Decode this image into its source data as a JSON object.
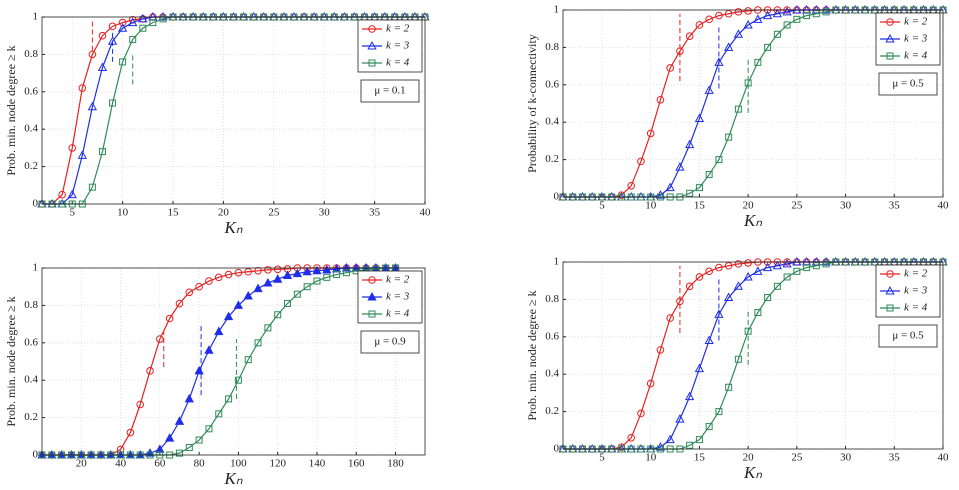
{
  "chart_data": [
    {
      "type": "line",
      "ylabel": "Prob. min. node degree ≥ k",
      "xlabel": "Kₙ",
      "annotation": "μ = 0.1",
      "grid": true,
      "legend": "upper right",
      "xlim": [
        2,
        40
      ],
      "ylim": [
        0,
        1
      ],
      "xticks": [
        5,
        10,
        15,
        20,
        25,
        30,
        35,
        40
      ],
      "yticks": [
        0,
        0.2,
        0.4,
        0.6,
        0.8,
        1
      ],
      "x": [
        2,
        3,
        4,
        5,
        6,
        7,
        8,
        9,
        10,
        11,
        12,
        13,
        14,
        15,
        16,
        17,
        18,
        19,
        20,
        21,
        22,
        23,
        24,
        25,
        26,
        27,
        28,
        29,
        30,
        31,
        32,
        33,
        34,
        35,
        36,
        37,
        38,
        39,
        40
      ],
      "series": [
        {
          "name": "k = 2",
          "color": "#e8201f",
          "marker": "circle",
          "filled": false,
          "values": [
            0,
            0,
            0.05,
            0.3,
            0.62,
            0.8,
            0.9,
            0.95,
            0.97,
            0.985,
            0.99,
            1,
            1,
            1,
            1,
            1,
            1,
            1,
            1,
            1,
            1,
            1,
            1,
            1,
            1,
            1,
            1,
            1,
            1,
            1,
            1,
            1,
            1,
            1,
            1,
            1,
            1,
            1,
            1
          ]
        },
        {
          "name": "k = 3",
          "color": "#1f2ee8",
          "marker": "triangle",
          "filled": false,
          "values": [
            0,
            0,
            0,
            0.05,
            0.26,
            0.52,
            0.73,
            0.87,
            0.94,
            0.97,
            0.99,
            1,
            1,
            1,
            1,
            1,
            1,
            1,
            1,
            1,
            1,
            1,
            1,
            1,
            1,
            1,
            1,
            1,
            1,
            1,
            1,
            1,
            1,
            1,
            1,
            1,
            1,
            1,
            1
          ]
        },
        {
          "name": "k = 4",
          "color": "#2e8b57",
          "marker": "square",
          "filled": false,
          "values": [
            0,
            0,
            0,
            0,
            0,
            0.09,
            0.28,
            0.54,
            0.76,
            0.88,
            0.94,
            0.97,
            0.99,
            1,
            1,
            1,
            1,
            1,
            1,
            1,
            1,
            1,
            1,
            1,
            1,
            1,
            1,
            1,
            1,
            1,
            1,
            1,
            1,
            1,
            1,
            1,
            1,
            1,
            1
          ]
        }
      ],
      "vlines": [
        {
          "x": 7,
          "y": [
            0.82,
            0.98
          ],
          "color": "#e8201f"
        },
        {
          "x": 9,
          "y": [
            0.76,
            0.92
          ],
          "color": "#1f2ee8"
        },
        {
          "x": 11,
          "y": [
            0.64,
            0.8
          ],
          "color": "#2e8b57"
        }
      ]
    },
    {
      "type": "line",
      "ylabel": "Probability of k-connectivity",
      "xlabel": "Kₙ",
      "annotation": "μ = 0.5",
      "grid": true,
      "legend": "upper right",
      "xlim": [
        1,
        40
      ],
      "ylim": [
        0,
        1
      ],
      "xticks": [
        5,
        10,
        15,
        20,
        25,
        30,
        35,
        40
      ],
      "yticks": [
        0,
        0.2,
        0.4,
        0.6,
        0.8,
        1
      ],
      "x": [
        1,
        2,
        3,
        4,
        5,
        6,
        7,
        8,
        9,
        10,
        11,
        12,
        13,
        14,
        15,
        16,
        17,
        18,
        19,
        20,
        21,
        22,
        23,
        24,
        25,
        26,
        27,
        28,
        29,
        30,
        31,
        32,
        33,
        34,
        35,
        36,
        37,
        38,
        39,
        40
      ],
      "series": [
        {
          "name": "k = 2",
          "color": "#e8201f",
          "marker": "circle",
          "filled": false,
          "values": [
            0,
            0,
            0,
            0,
            0,
            0,
            0.01,
            0.06,
            0.19,
            0.34,
            0.52,
            0.69,
            0.78,
            0.86,
            0.92,
            0.95,
            0.97,
            0.98,
            0.99,
            0.995,
            1,
            1,
            1,
            1,
            1,
            1,
            1,
            1,
            1,
            1,
            1,
            1,
            1,
            1,
            1,
            1,
            1,
            1,
            1,
            1
          ]
        },
        {
          "name": "k = 3",
          "color": "#1f2ee8",
          "marker": "triangle",
          "filled": false,
          "values": [
            0,
            0,
            0,
            0,
            0,
            0,
            0,
            0,
            0,
            0,
            0.01,
            0.05,
            0.16,
            0.28,
            0.42,
            0.57,
            0.72,
            0.8,
            0.87,
            0.92,
            0.95,
            0.97,
            0.98,
            0.99,
            1,
            1,
            1,
            1,
            1,
            1,
            1,
            1,
            1,
            1,
            1,
            1,
            1,
            1,
            1,
            1
          ]
        },
        {
          "name": "k = 4",
          "color": "#2e8b57",
          "marker": "square",
          "filled": false,
          "values": [
            0,
            0,
            0,
            0,
            0,
            0,
            0,
            0,
            0,
            0,
            0,
            0,
            0,
            0.02,
            0.05,
            0.12,
            0.2,
            0.32,
            0.47,
            0.61,
            0.72,
            0.8,
            0.87,
            0.92,
            0.95,
            0.97,
            0.98,
            0.99,
            1,
            1,
            1,
            1,
            1,
            1,
            1,
            1,
            1,
            1,
            1,
            1
          ]
        }
      ],
      "vlines": [
        {
          "x": 13,
          "y": [
            0.62,
            0.98
          ],
          "color": "#e8201f"
        },
        {
          "x": 17,
          "y": [
            0.58,
            0.92
          ],
          "color": "#1f2ee8"
        },
        {
          "x": 20,
          "y": [
            0.45,
            0.75
          ],
          "color": "#2e8b57"
        }
      ]
    },
    {
      "type": "line",
      "ylabel": "Prob. min. node degree ≥ k",
      "xlabel": "Kₙ",
      "annotation": "μ = 0.9",
      "grid": true,
      "legend": "upper right",
      "xlim": [
        0,
        195
      ],
      "ylim": [
        0,
        1
      ],
      "xticks": [
        20,
        40,
        60,
        80,
        100,
        120,
        140,
        160,
        180
      ],
      "yticks": [
        0,
        0.2,
        0.4,
        0.6,
        0.8,
        1
      ],
      "x": [
        0,
        5,
        10,
        15,
        20,
        25,
        30,
        35,
        40,
        45,
        50,
        55,
        60,
        65,
        70,
        75,
        80,
        85,
        90,
        95,
        100,
        105,
        110,
        115,
        120,
        125,
        130,
        135,
        140,
        145,
        150,
        155,
        160,
        165,
        170,
        175,
        180
      ],
      "series": [
        {
          "name": "k = 2",
          "color": "#e8201f",
          "marker": "circle",
          "filled": false,
          "values": [
            0,
            0,
            0,
            0,
            0,
            0,
            0,
            0,
            0.03,
            0.12,
            0.27,
            0.45,
            0.62,
            0.73,
            0.81,
            0.87,
            0.9,
            0.93,
            0.95,
            0.965,
            0.975,
            0.98,
            0.985,
            0.99,
            0.993,
            0.995,
            1,
            1,
            1,
            1,
            1,
            1,
            1,
            1,
            1,
            1,
            1
          ]
        },
        {
          "name": "k = 3",
          "color": "#1f2ee8",
          "marker": "triangle",
          "filled": true,
          "values": [
            0,
            0,
            0,
            0,
            0,
            0,
            0,
            0,
            0,
            0,
            0,
            0.01,
            0.03,
            0.09,
            0.18,
            0.3,
            0.45,
            0.56,
            0.66,
            0.74,
            0.8,
            0.85,
            0.89,
            0.92,
            0.94,
            0.96,
            0.97,
            0.98,
            0.985,
            0.99,
            0.995,
            1,
            1,
            1,
            1,
            1,
            1
          ]
        },
        {
          "name": "k = 4",
          "color": "#2e8b57",
          "marker": "square",
          "filled": false,
          "values": [
            0,
            0,
            0,
            0,
            0,
            0,
            0,
            0,
            0,
            0,
            0,
            0,
            0,
            0,
            0.01,
            0.04,
            0.08,
            0.14,
            0.22,
            0.3,
            0.4,
            0.51,
            0.6,
            0.68,
            0.75,
            0.81,
            0.86,
            0.9,
            0.93,
            0.95,
            0.965,
            0.975,
            0.985,
            0.99,
            0.995,
            1,
            1
          ]
        }
      ],
      "vlines": [
        {
          "x": 62,
          "y": [
            0.47,
            0.66
          ],
          "color": "#e8201f"
        },
        {
          "x": 81,
          "y": [
            0.32,
            0.69
          ],
          "color": "#1f2ee8"
        },
        {
          "x": 99,
          "y": [
            0.3,
            0.62
          ],
          "color": "#2e8b57"
        }
      ]
    },
    {
      "type": "line",
      "ylabel": "Prob. min. node degree ≥ k",
      "xlabel": "Kₙ",
      "annotation": "μ = 0.5",
      "grid": true,
      "legend": "upper right",
      "xlim": [
        1,
        40
      ],
      "ylim": [
        0,
        1
      ],
      "xticks": [
        5,
        10,
        15,
        20,
        25,
        30,
        35,
        40
      ],
      "yticks": [
        0,
        0.2,
        0.4,
        0.6,
        0.8,
        1
      ],
      "x": [
        1,
        2,
        3,
        4,
        5,
        6,
        7,
        8,
        9,
        10,
        11,
        12,
        13,
        14,
        15,
        16,
        17,
        18,
        19,
        20,
        21,
        22,
        23,
        24,
        25,
        26,
        27,
        28,
        29,
        30,
        31,
        32,
        33,
        34,
        35,
        36,
        37,
        38,
        39,
        40
      ],
      "series": [
        {
          "name": "k = 2",
          "color": "#e8201f",
          "marker": "circle",
          "filled": false,
          "values": [
            0,
            0,
            0,
            0,
            0,
            0,
            0.01,
            0.06,
            0.19,
            0.35,
            0.53,
            0.7,
            0.79,
            0.87,
            0.92,
            0.95,
            0.97,
            0.98,
            0.99,
            0.995,
            1,
            1,
            1,
            1,
            1,
            1,
            1,
            1,
            1,
            1,
            1,
            1,
            1,
            1,
            1,
            1,
            1,
            1,
            1,
            1
          ]
        },
        {
          "name": "k = 3",
          "color": "#1f2ee8",
          "marker": "triangle",
          "filled": false,
          "values": [
            0,
            0,
            0,
            0,
            0,
            0,
            0,
            0,
            0,
            0,
            0.01,
            0.05,
            0.16,
            0.28,
            0.43,
            0.58,
            0.72,
            0.81,
            0.87,
            0.92,
            0.95,
            0.97,
            0.98,
            0.99,
            1,
            1,
            1,
            1,
            1,
            1,
            1,
            1,
            1,
            1,
            1,
            1,
            1,
            1,
            1,
            1
          ]
        },
        {
          "name": "k = 4",
          "color": "#2e8b57",
          "marker": "square",
          "filled": false,
          "values": [
            0,
            0,
            0,
            0,
            0,
            0,
            0,
            0,
            0,
            0,
            0,
            0,
            0,
            0.02,
            0.05,
            0.12,
            0.2,
            0.33,
            0.48,
            0.63,
            0.73,
            0.81,
            0.87,
            0.92,
            0.95,
            0.97,
            0.98,
            0.99,
            1,
            1,
            1,
            1,
            1,
            1,
            1,
            1,
            1,
            1,
            1,
            1
          ]
        }
      ],
      "vlines": [
        {
          "x": 13,
          "y": [
            0.62,
            0.98
          ],
          "color": "#e8201f"
        },
        {
          "x": 17,
          "y": [
            0.58,
            0.92
          ],
          "color": "#1f2ee8"
        },
        {
          "x": 20,
          "y": [
            0.45,
            0.75
          ],
          "color": "#2e8b57"
        }
      ]
    }
  ]
}
